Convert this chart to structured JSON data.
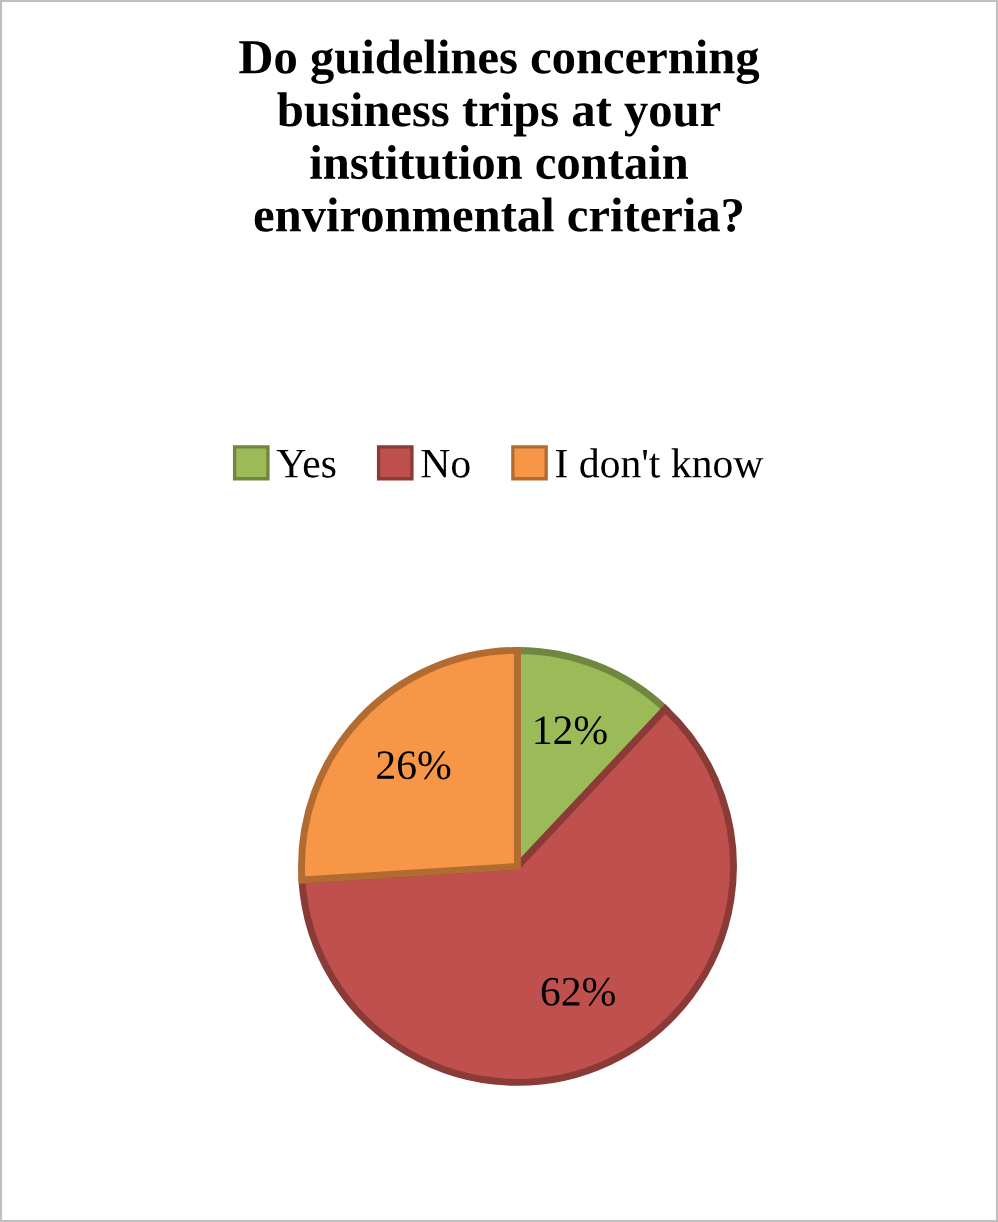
{
  "chart_data": {
    "type": "pie",
    "title": "Do guidelines concerning\nbusiness trips at your\ninstitution contain\nenvironmental criteria?",
    "categories": [
      "Yes",
      "No",
      "I don't know"
    ],
    "values": [
      12,
      62,
      26
    ],
    "colors": [
      "#9bbb59",
      "#c0504d",
      "#f79646"
    ],
    "value_labels": [
      "12%",
      "62%",
      "26%"
    ],
    "legend": "top"
  }
}
